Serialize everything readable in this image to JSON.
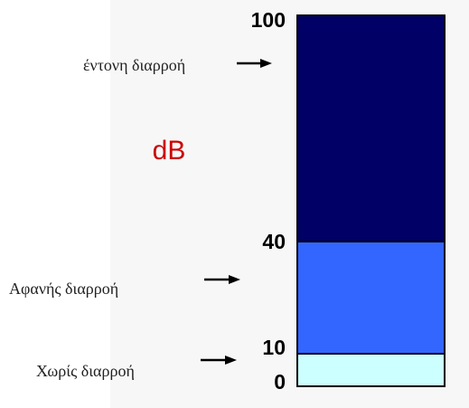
{
  "chart_data": {
    "type": "bar",
    "orientation": "vertical-stacked",
    "unit_label": "dB",
    "unit_color": "#cc0000",
    "ylim": [
      0,
      100
    ],
    "ticks": [
      "100",
      "40",
      "10",
      "0"
    ],
    "tick_values": [
      100,
      40,
      10,
      0
    ],
    "zones": [
      {
        "label": "Χωρίς διαρροή",
        "from": 0,
        "to": 10,
        "color": "#ccffff"
      },
      {
        "label": "Αφανής διαρροή",
        "from": 10,
        "to": 40,
        "color": "#3366ff"
      },
      {
        "label": "έντονη διαρροή",
        "from": 40,
        "to": 100,
        "color": "#000066"
      }
    ]
  }
}
